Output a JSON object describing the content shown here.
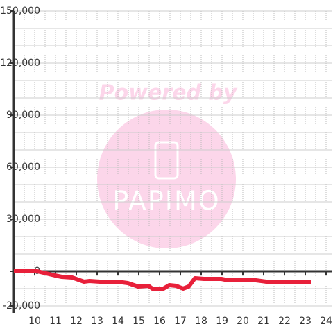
{
  "chart_data": {
    "type": "line",
    "watermark": {
      "text": "Powered by",
      "logo": "PAPIMO"
    },
    "xlim": [
      9,
      24.3
    ],
    "ylim": [
      -24000,
      150000
    ],
    "xticks": [
      10,
      11,
      12,
      13,
      14,
      15,
      16,
      17,
      18,
      19,
      20,
      21,
      22,
      23,
      24
    ],
    "yticks": [
      {
        "value": -20000,
        "label": "-20,000"
      },
      0,
      {
        "value": 30000,
        "label": "30,000"
      },
      {
        "value": 60000,
        "label": "60,000"
      },
      {
        "value": 90000,
        "label": "90,000"
      },
      {
        "value": 120000,
        "label": "120,000"
      },
      {
        "value": 150000,
        "label": "150,000"
      }
    ],
    "xgrid": [
      9.5,
      10,
      10.5,
      11,
      11.5,
      12,
      12.5,
      13,
      13.5,
      14,
      14.5,
      15,
      15.5,
      16,
      16.5,
      17,
      17.5,
      18,
      18.5,
      19,
      19.5,
      20,
      20.5,
      21,
      21.5,
      22,
      22.5,
      23,
      23.5,
      24
    ],
    "ygrid": [
      -20000,
      -10000,
      10000,
      20000,
      30000,
      40000,
      50000,
      60000,
      70000,
      80000,
      90000,
      100000,
      110000,
      120000,
      130000,
      140000,
      150000
    ],
    "series": [
      {
        "color": "#e8203a",
        "x": [
          9,
          10.13,
          10.97,
          11.3,
          11.8,
          12.37,
          12.63,
          13.13,
          13.97,
          14.47,
          14.97,
          15.47,
          15.7,
          16.13,
          16.47,
          16.8,
          17.13,
          17.4,
          17.7,
          18.13,
          18.97,
          19.3,
          20.63,
          21.13,
          23.3
        ],
        "values": [
          0,
          0,
          -2400,
          -3200,
          -3600,
          -6000,
          -5600,
          -6000,
          -6000,
          -6800,
          -8800,
          -8400,
          -10400,
          -10400,
          -8000,
          -8400,
          -10000,
          -8800,
          -4000,
          -4400,
          -4400,
          -5200,
          -5200,
          -6000,
          -6000
        ]
      }
    ]
  }
}
